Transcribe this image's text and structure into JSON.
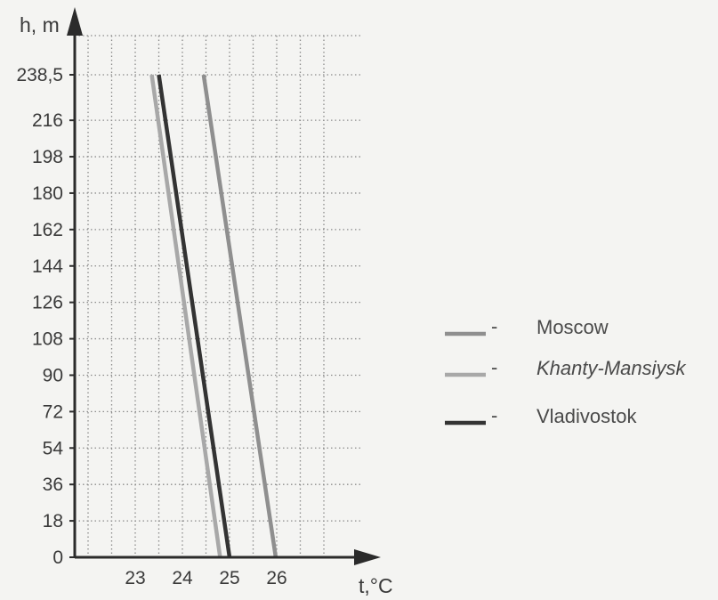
{
  "chart_data": {
    "type": "line",
    "title": "",
    "xlabel": "t,°C",
    "ylabel": "h, m",
    "xlim": [
      22,
      27.5
    ],
    "ylim": [
      0,
      238.5
    ],
    "x_ticks": [
      23,
      24,
      25,
      26
    ],
    "x_tick_labels": [
      "23",
      "24",
      "25",
      "26"
    ],
    "y_ticks": [
      0,
      18,
      36,
      54,
      72,
      90,
      108,
      126,
      144,
      162,
      180,
      198,
      216,
      238.5
    ],
    "y_tick_labels": [
      "0",
      "18",
      "36",
      "54",
      "72",
      "90",
      "108",
      "126",
      "144",
      "162",
      "180",
      "198",
      "216",
      "238,5"
    ],
    "grid": true,
    "legend_position": "right",
    "series": [
      {
        "name": "Moscow",
        "color": "#8f8f8f",
        "points": [
          {
            "x": 24.45,
            "y": 238.5
          },
          {
            "x": 25.98,
            "y": 0
          }
        ]
      },
      {
        "name": "Khanty-Mansiysk",
        "color": "#a8a8a8",
        "points": [
          {
            "x": 23.35,
            "y": 238.5
          },
          {
            "x": 24.8,
            "y": 0
          }
        ]
      },
      {
        "name": "Vladivostok",
        "color": "#333333",
        "points": [
          {
            "x": 23.5,
            "y": 238.5
          },
          {
            "x": 25.0,
            "y": 0
          }
        ]
      }
    ],
    "legend": [
      {
        "label": "Moscow",
        "marker": "-",
        "italic": false
      },
      {
        "label": "Khanty-Mansiysk",
        "marker": "-",
        "italic": true
      },
      {
        "label": "Vladivostok",
        "marker": "-",
        "italic": false
      }
    ]
  },
  "colors": {
    "axis": "#2b2b2b",
    "grid": "#8a8a8a",
    "background": "#f4f4f2"
  }
}
